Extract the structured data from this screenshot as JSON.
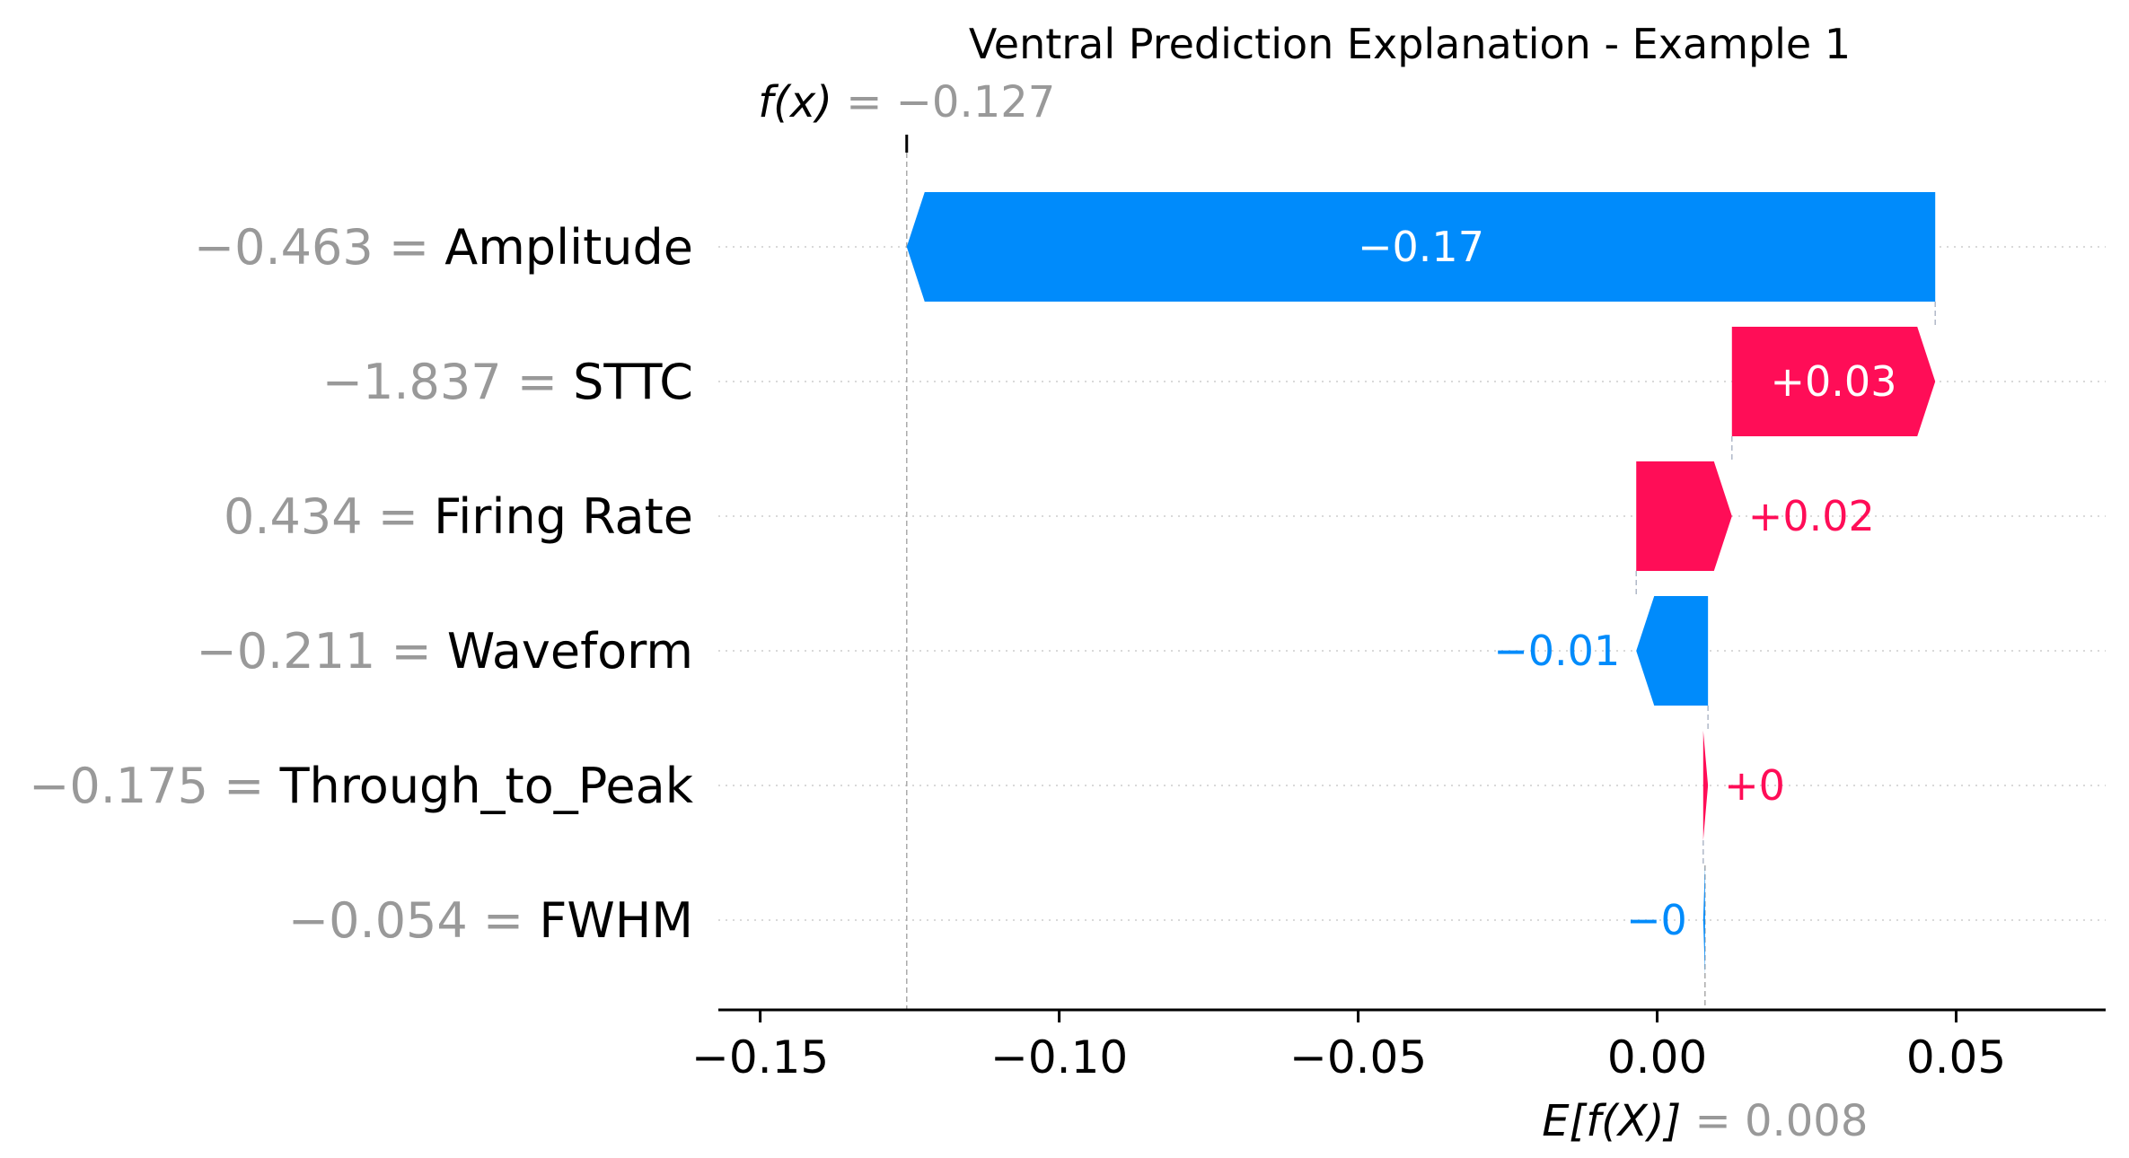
{
  "chart_data": {
    "type": "waterfall",
    "title": "Ventral Prediction Explanation - Example 1",
    "fx": {
      "label": "f(x)",
      "equals": " = ",
      "value_text": "−0.127",
      "value": -0.127
    },
    "expected": {
      "label": "E[f(X)]",
      "equals": " = ",
      "value_text": "0.008",
      "value": 0.008
    },
    "xlim": [
      -0.157,
      0.075
    ],
    "ticks": [
      {
        "value": -0.15,
        "label": "−0.15"
      },
      {
        "value": -0.1,
        "label": "−0.10"
      },
      {
        "value": -0.05,
        "label": "−0.05"
      },
      {
        "value": 0.0,
        "label": "0.00"
      },
      {
        "value": 0.05,
        "label": "0.05"
      }
    ],
    "features": [
      {
        "name": "Amplitude",
        "feature_value": "−0.463",
        "shap": -0.172,
        "label": "−0.17"
      },
      {
        "name": "STTC",
        "feature_value": "−1.837",
        "shap": 0.034,
        "label": "+0.03"
      },
      {
        "name": "Firing Rate",
        "feature_value": "0.434",
        "shap": 0.016,
        "label": "+0.02"
      },
      {
        "name": "Waveform",
        "feature_value": "−0.211",
        "shap": -0.012,
        "label": "−0.01"
      },
      {
        "name": "Through_to_Peak",
        "feature_value": "−0.175",
        "shap": 0.0008,
        "label": "+0"
      },
      {
        "name": "FWHM",
        "feature_value": "−0.054",
        "shap": -0.0003,
        "label": "−0"
      }
    ],
    "colors": {
      "positive": "#ff0d57",
      "negative": "#008bfb"
    }
  }
}
